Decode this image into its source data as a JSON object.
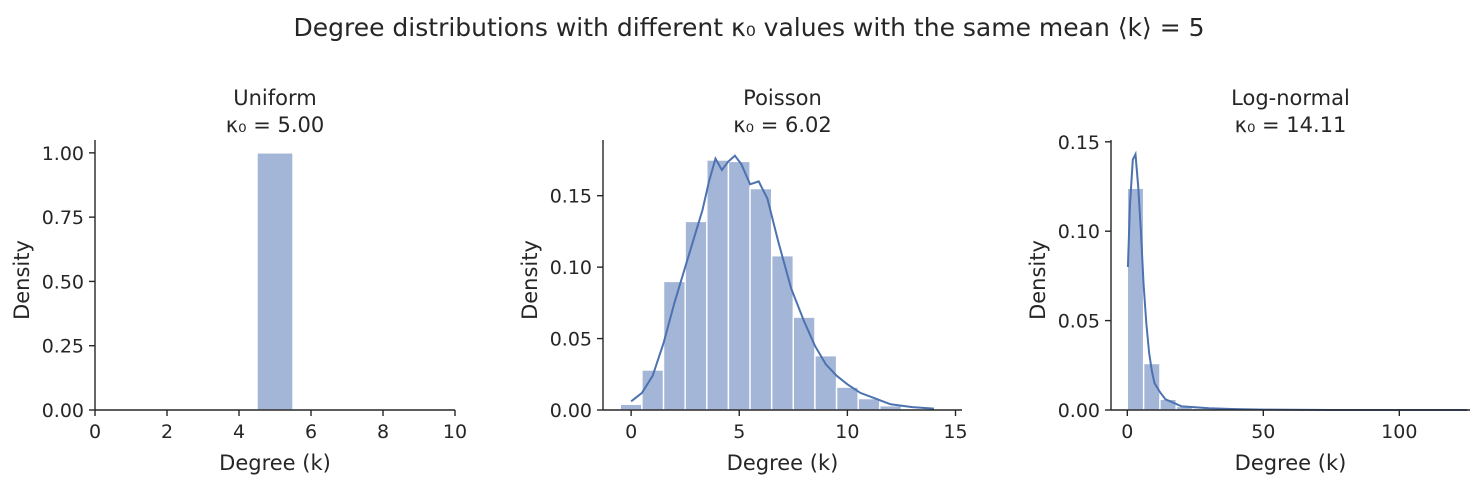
{
  "figure": {
    "suptitle_text": "Degree distributions with different κ₀ values with the same mean ⟨k⟩ = 5"
  },
  "chart_data": [
    {
      "type": "bar",
      "panel": "uniform",
      "title_line1": "Uniform",
      "title_line2": "κ₀ = 5.00",
      "xlabel": "Degree (k)",
      "ylabel": "Density",
      "xlim": [
        0,
        10
      ],
      "ylim": [
        0,
        1.05
      ],
      "xticks": [
        0,
        2,
        4,
        6,
        8,
        10
      ],
      "xtick_labels": [
        "0",
        "2",
        "4",
        "6",
        "8",
        "10"
      ],
      "yticks": [
        0,
        0.25,
        0.5,
        0.75,
        1.0
      ],
      "ytick_labels": [
        "0.00",
        "0.25",
        "0.50",
        "0.75",
        "1.00"
      ],
      "bins": [
        {
          "x0": 4.5,
          "x1": 5.5,
          "value": 1.0
        }
      ],
      "kde": []
    },
    {
      "type": "bar",
      "panel": "poisson",
      "title_line1": "Poisson",
      "title_line2": "κ₀ = 6.02",
      "xlabel": "Degree (k)",
      "ylabel": "Density",
      "xlim": [
        -1.3,
        15.3
      ],
      "ylim": [
        0,
        0.189
      ],
      "xticks": [
        0,
        5,
        10,
        15
      ],
      "xtick_labels": [
        "0",
        "5",
        "10",
        "15"
      ],
      "yticks": [
        0,
        0.05,
        0.1,
        0.15
      ],
      "ytick_labels": [
        "0.00",
        "0.05",
        "0.10",
        "0.15"
      ],
      "bins": [
        {
          "x0": -0.5,
          "x1": 0.5,
          "value": 0.004
        },
        {
          "x0": 0.5,
          "x1": 1.5,
          "value": 0.028
        },
        {
          "x0": 1.5,
          "x1": 2.5,
          "value": 0.09
        },
        {
          "x0": 2.5,
          "x1": 3.5,
          "value": 0.132
        },
        {
          "x0": 3.5,
          "x1": 4.5,
          "value": 0.175
        },
        {
          "x0": 4.5,
          "x1": 5.5,
          "value": 0.174
        },
        {
          "x0": 5.5,
          "x1": 6.5,
          "value": 0.155
        },
        {
          "x0": 6.5,
          "x1": 7.5,
          "value": 0.108
        },
        {
          "x0": 7.5,
          "x1": 8.5,
          "value": 0.065
        },
        {
          "x0": 8.5,
          "x1": 9.5,
          "value": 0.038
        },
        {
          "x0": 9.5,
          "x1": 10.5,
          "value": 0.016
        },
        {
          "x0": 10.5,
          "x1": 11.5,
          "value": 0.008
        },
        {
          "x0": 11.5,
          "x1": 12.5,
          "value": 0.003
        },
        {
          "x0": 12.5,
          "x1": 13.5,
          "value": 0.001
        }
      ],
      "kde": [
        [
          0,
          0.006
        ],
        [
          0.5,
          0.012
        ],
        [
          1.0,
          0.024
        ],
        [
          1.5,
          0.047
        ],
        [
          2.0,
          0.075
        ],
        [
          2.5,
          0.1
        ],
        [
          3.0,
          0.125
        ],
        [
          3.3,
          0.14
        ],
        [
          3.6,
          0.16
        ],
        [
          3.9,
          0.176
        ],
        [
          4.2,
          0.168
        ],
        [
          4.5,
          0.174
        ],
        [
          4.8,
          0.178
        ],
        [
          5.1,
          0.172
        ],
        [
          5.5,
          0.158
        ],
        [
          5.9,
          0.16
        ],
        [
          6.3,
          0.148
        ],
        [
          6.8,
          0.118
        ],
        [
          7.4,
          0.085
        ],
        [
          8.0,
          0.062
        ],
        [
          8.5,
          0.045
        ],
        [
          9.0,
          0.032
        ],
        [
          9.5,
          0.024
        ],
        [
          10.0,
          0.018
        ],
        [
          10.6,
          0.012
        ],
        [
          11.3,
          0.008
        ],
        [
          12.0,
          0.004
        ],
        [
          13.0,
          0.002
        ],
        [
          14.0,
          0.001
        ]
      ]
    },
    {
      "type": "bar",
      "panel": "lognormal",
      "title_line1": "Log-normal",
      "title_line2": "κ₀ = 14.11",
      "xlabel": "Degree (k)",
      "ylabel": "Density",
      "xlim": [
        -6,
        126
      ],
      "ylim": [
        0,
        0.151
      ],
      "xticks": [
        0,
        50,
        100
      ],
      "xtick_labels": [
        "0",
        "50",
        "100"
      ],
      "yticks": [
        0,
        0.05,
        0.1,
        0.15
      ],
      "ytick_labels": [
        "0.00",
        "0.05",
        "0.10",
        "0.15"
      ],
      "bins": [
        {
          "x0": 0,
          "x1": 6,
          "value": 0.124
        },
        {
          "x0": 6,
          "x1": 12,
          "value": 0.026
        },
        {
          "x0": 12,
          "x1": 18,
          "value": 0.006
        },
        {
          "x0": 18,
          "x1": 24,
          "value": 0.002
        },
        {
          "x0": 24,
          "x1": 30,
          "value": 0.001
        },
        {
          "x0": 30,
          "x1": 36,
          "value": 0.0005
        },
        {
          "x0": 36,
          "x1": 42,
          "value": 0.0003
        }
      ],
      "kde": [
        [
          0.2,
          0.08
        ],
        [
          1,
          0.115
        ],
        [
          2,
          0.14
        ],
        [
          3,
          0.143
        ],
        [
          4,
          0.125
        ],
        [
          5,
          0.1
        ],
        [
          6,
          0.07
        ],
        [
          7,
          0.048
        ],
        [
          8,
          0.032
        ],
        [
          9,
          0.022
        ],
        [
          10,
          0.015
        ],
        [
          12,
          0.01
        ],
        [
          14,
          0.006
        ],
        [
          17,
          0.004
        ],
        [
          20,
          0.002
        ],
        [
          25,
          0.0015
        ],
        [
          30,
          0.001
        ],
        [
          40,
          0.0005
        ],
        [
          50,
          0.0002
        ],
        [
          60,
          0.0001
        ],
        [
          75,
          0
        ],
        [
          100,
          0
        ],
        [
          125,
          0
        ]
      ]
    }
  ]
}
